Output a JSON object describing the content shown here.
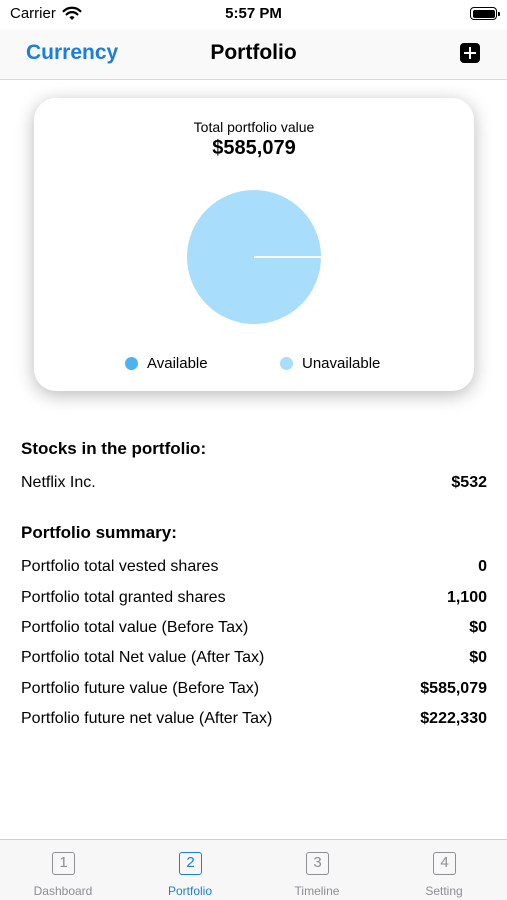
{
  "status_bar": {
    "carrier": "Carrier",
    "time": "5:57 PM",
    "wifi_icon": "wifi-icon",
    "battery_icon": "battery-icon"
  },
  "nav": {
    "left_button": "Currency",
    "title": "Portfolio",
    "right_icon": "add-square-icon"
  },
  "summary_card": {
    "label": "Total portfolio value",
    "value": "$585,079",
    "legend": [
      {
        "label": "Available",
        "color": "#4ab3f0"
      },
      {
        "label": "Unavailable",
        "color": "#a8ddfb"
      }
    ]
  },
  "chart_data": {
    "type": "pie",
    "labels": [
      "Available",
      "Unavailable"
    ],
    "values": [
      0,
      585079
    ],
    "colors": [
      "#4ab3f0",
      "#a8ddfb"
    ]
  },
  "stocks_section": {
    "title": "Stocks in the portfolio:",
    "rows": [
      {
        "label": "Netflix Inc.",
        "value": "$532"
      }
    ]
  },
  "summary_section": {
    "title": "Portfolio summary:",
    "rows": [
      {
        "label": "Portfolio total vested shares",
        "value": "0"
      },
      {
        "label": "Portfolio total granted shares",
        "value": "1,100"
      },
      {
        "label": "Portfolio total value (Before Tax)",
        "value": "$0"
      },
      {
        "label": "Portfolio total Net value (After Tax)",
        "value": "$0"
      },
      {
        "label": "Portfolio future value (Before Tax)",
        "value": "$585,079"
      },
      {
        "label": "Portfolio future net value (After Tax)",
        "value": "$222,330"
      }
    ]
  },
  "tabs": [
    {
      "number": "1",
      "label": "Dashboard",
      "icon": "square-1-icon",
      "active": false
    },
    {
      "number": "2",
      "label": "Portfolio",
      "icon": "square-2-icon",
      "active": true
    },
    {
      "number": "3",
      "label": "Timeline",
      "icon": "square-3-icon",
      "active": false
    },
    {
      "number": "4",
      "label": "Setting",
      "icon": "square-4-icon",
      "active": false
    }
  ]
}
